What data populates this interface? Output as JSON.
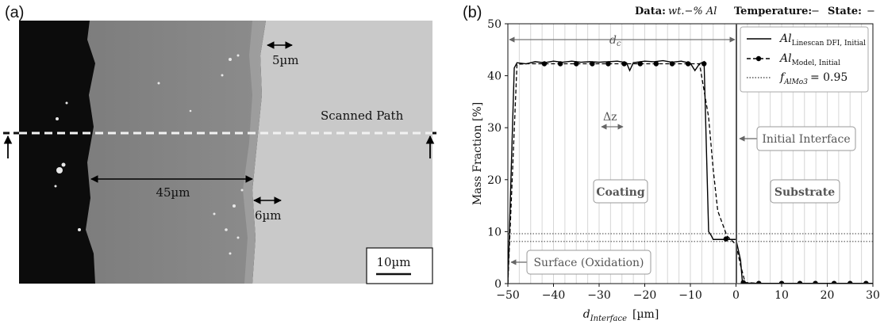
{
  "panel_a": {
    "label": "(a)",
    "annotations": {
      "top_width": "5µm",
      "coating_width": "45µm",
      "bottom_width": "6µm",
      "scan_path": "Scanned Path",
      "scale_bar": "10µm"
    }
  },
  "panel_b": {
    "label": "(b)",
    "header": {
      "data_label": "Data:",
      "data_value": "wt.−% Al",
      "temperature_label": "Temperature:",
      "temperature_value": "−",
      "state_label": "State:",
      "state_value": "−"
    }
  },
  "chart_data": {
    "type": "line",
    "xlabel": "d",
    "xlabel_sub": "Interface",
    "xlabel_unit": "[µm]",
    "ylabel": "Mass Fraction [%]",
    "xlim": [
      -50,
      30
    ],
    "ylim": [
      0,
      50
    ],
    "xticks": [
      -50,
      -40,
      -30,
      -20,
      -10,
      0,
      10,
      20,
      30
    ],
    "yticks": [
      0,
      10,
      20,
      30,
      40,
      50
    ],
    "x_tick_labels": [
      "−50",
      "−40",
      "−30",
      "−20",
      "−10",
      "0",
      "10",
      "20",
      "30"
    ],
    "y_tick_labels": [
      "0",
      "10",
      "20",
      "30",
      "40",
      "50"
    ],
    "grid": "vertical",
    "legend_position": "top-right",
    "series": [
      {
        "name": "Al",
        "name_sub": "Linescan DFI, Initial",
        "style": "solid",
        "color": "#000000",
        "x": [
          -50,
          -48.6,
          -48,
          -46,
          -44,
          -42,
          -40,
          -38,
          -36,
          -34,
          -32,
          -30,
          -28,
          -26,
          -24,
          -23.3,
          -22.5,
          -20,
          -18,
          -16,
          -14,
          -12,
          -10,
          -9,
          -8,
          -7,
          -6,
          -5.4,
          -5,
          -4,
          -2,
          -0.5,
          0,
          1,
          1.4,
          2,
          5,
          10,
          20,
          30
        ],
        "y": [
          0,
          41.5,
          42.5,
          42.3,
          42.7,
          42.5,
          42.8,
          42.6,
          42.8,
          42.6,
          42.7,
          42.6,
          42.7,
          42.8,
          42.5,
          41.0,
          42.5,
          42.8,
          42.7,
          42.9,
          42.6,
          42.8,
          42.4,
          41.0,
          42.3,
          42.7,
          10,
          9.2,
          8.5,
          8.5,
          8.5,
          8.5,
          8.5,
          4.5,
          0.3,
          0.1,
          0.05,
          0.05,
          0.05,
          0.05
        ]
      },
      {
        "name": "Al",
        "name_sub": "Model, Initial",
        "style": "dashed-markers",
        "color": "#000000",
        "x": [
          -50,
          -48,
          -46,
          -44,
          -42,
          -40,
          -38,
          -36,
          -34,
          -32,
          -30,
          -28,
          -26,
          -24,
          -22,
          -20,
          -18,
          -16,
          -14,
          -12,
          -10,
          -8,
          -6,
          -5,
          -4,
          -2,
          0,
          1,
          2,
          5,
          10,
          14,
          18,
          22,
          26,
          30
        ],
        "y": [
          0,
          42.2,
          42.3,
          42.3,
          42.3,
          42.3,
          42.3,
          42.3,
          42.3,
          42.3,
          42.3,
          42.3,
          42.3,
          42.3,
          42.3,
          42.3,
          42.3,
          42.3,
          42.3,
          42.3,
          42.3,
          42.3,
          32,
          22,
          14,
          9.2,
          7.5,
          3.5,
          0.2,
          0.05,
          0.05,
          0.05,
          0.05,
          0.05,
          0.05,
          0.05
        ],
        "marker_x": [
          -42,
          -38.5,
          -35,
          -31.5,
          -28,
          -24.5,
          -21,
          -17.5,
          -14,
          -10.5,
          -7,
          -2.2,
          1.6,
          5,
          10,
          14,
          17.4,
          21.5,
          25,
          28.5
        ],
        "marker_y": [
          42.3,
          42.3,
          42.3,
          42.3,
          42.3,
          42.3,
          42.3,
          42.3,
          42.3,
          42.3,
          42.3,
          8.6,
          0.2,
          0.05,
          0.05,
          0.05,
          0.05,
          0.05,
          0.05,
          0.05
        ]
      },
      {
        "name": "f",
        "name_sub": "AlMo3",
        "name_suffix": "= 0.95",
        "style": "dotted",
        "color": "#000000",
        "y_levels": [
          8.1,
          9.6
        ]
      }
    ],
    "annotations": {
      "dc_label": "d",
      "dc_sub": "c",
      "dz_label": "Δz",
      "coating": "Coating",
      "substrate": "Substrate",
      "initial_interface": "Initial Interface",
      "surface": "Surface (Oxidation)"
    }
  }
}
